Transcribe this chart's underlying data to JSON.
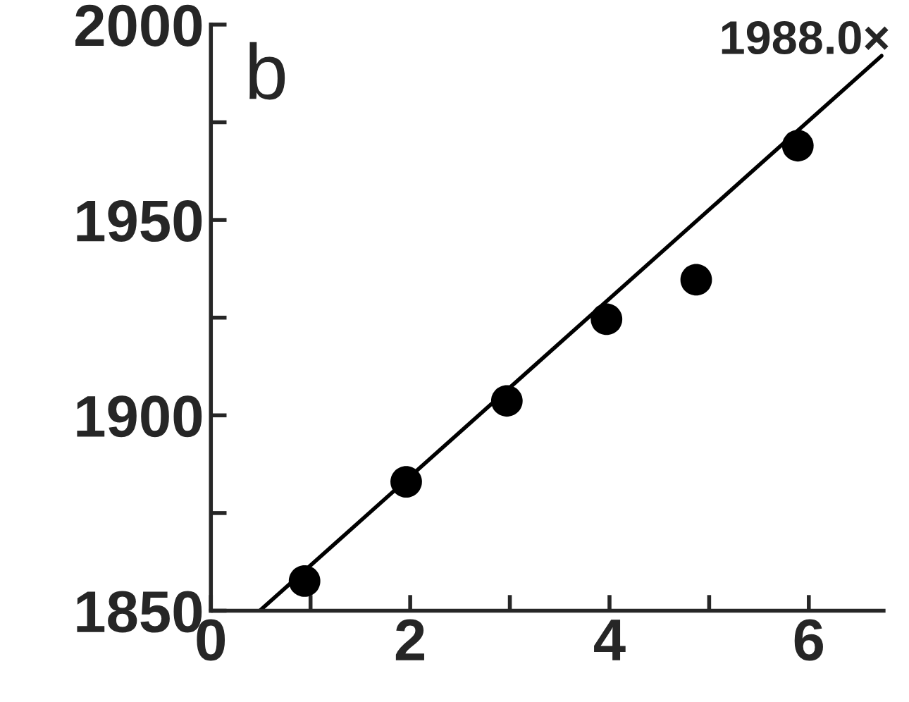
{
  "chart_data": {
    "type": "scatter",
    "series": [
      {
        "color": "#000000",
        "marker": "circle",
        "x": [
          0.94,
          1.96,
          2.97,
          3.97,
          4.87,
          5.89
        ],
        "values": [
          1857.6,
          1883,
          1903.7,
          1924.6,
          1934.7,
          1969
        ]
      },
      {
        "type": "line",
        "color": "#000000",
        "marker": "none",
        "line_style": "solid",
        "x": [
          0.49,
          6.73
        ],
        "values": [
          1850,
          1992
        ]
      }
    ],
    "annotations": [
      "b",
      {
        "text": "1988.0×",
        "x": 6.66,
        "y": 1988
      }
    ],
    "xlim": [
      0,
      6.75
    ],
    "ylim": [
      1850,
      2000
    ],
    "xticks": [
      0,
      {
        "value": 1,
        "label": null
      },
      2,
      {
        "value": 3,
        "label": null
      },
      4,
      {
        "value": 5,
        "label": null
      },
      6
    ],
    "yticks": [
      1850,
      {
        "value": 1875,
        "label": null
      },
      1900,
      {
        "value": 1925,
        "label": null
      },
      1950,
      {
        "value": 1975,
        "label": null
      },
      2000
    ],
    "grid": false
  }
}
